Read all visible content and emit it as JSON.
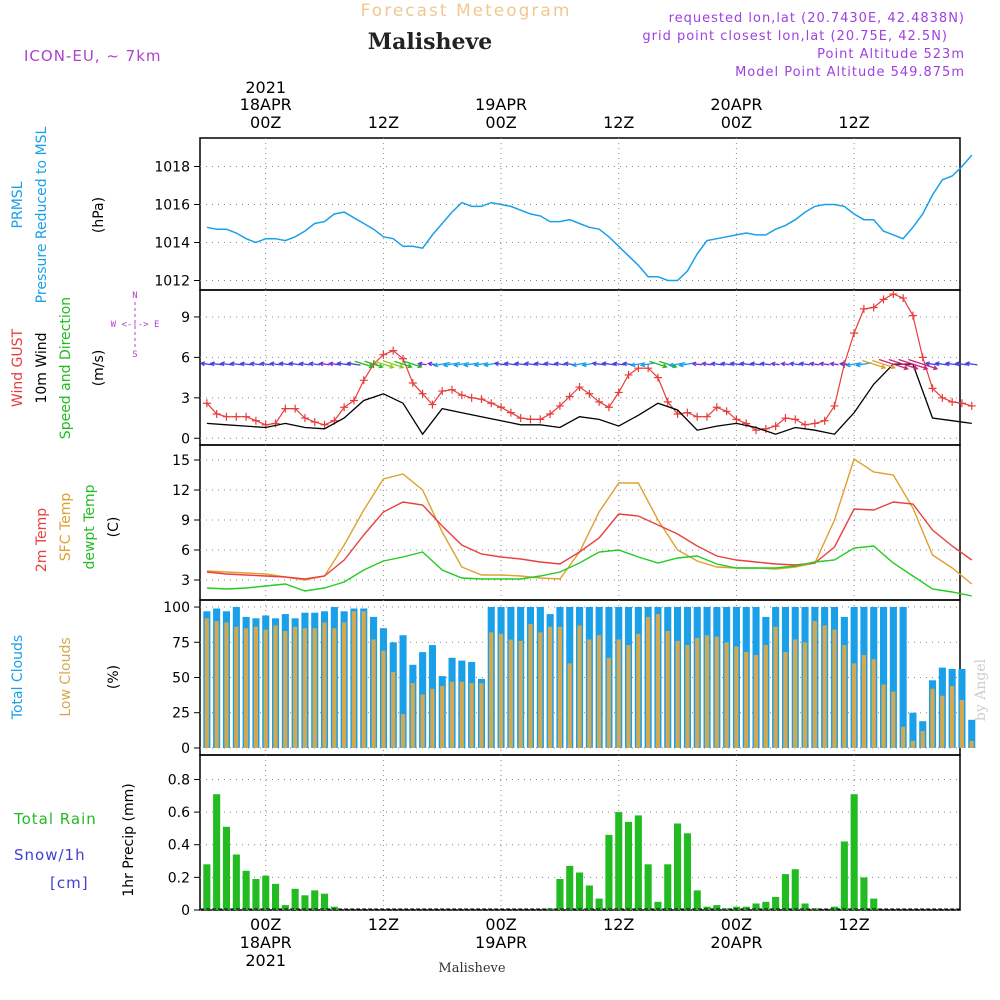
{
  "header": {
    "suptitle": "Forecast Meteogram",
    "title": "Malisheve",
    "model": "ICON-EU, ~ 7km",
    "requested": "requested lon,lat (20.7430E, 42.4838N)",
    "gridpoint": "grid point closest lon,lat (20.75E, 42.5N)",
    "point_alt": "Point Altitude 523m",
    "model_alt": "Model Point Altitude 549.875m",
    "watermark": "by Angel",
    "footer": "Malisheve",
    "compass": "W <-|-> E",
    "compass_n": "N",
    "compass_s": "S"
  },
  "colors": {
    "pressure": "#1aa0e8",
    "gust": "#e83c3c",
    "wind": "#000000",
    "dir": "#22bb22",
    "temp2m": "#e84040",
    "sfc": "#e0a030",
    "dewpt": "#22cc22",
    "total_clouds": "#1aa0e8",
    "low_clouds": "#d4a850",
    "rain": "#22bb22",
    "snow": "#4040d0",
    "compass": "#b040d0",
    "header_info": "#a040e0"
  },
  "chart_data": [
    {
      "name": "pressure",
      "type": "line",
      "x_unit": "hours from 18APR 00Z",
      "labels": {
        "a": "PRMSL",
        "b": "Pressure Reduced to MSL",
        "unit": "(hPa)"
      },
      "yticks": [
        1012,
        1014,
        1016,
        1018
      ],
      "ylim": [
        1011.5,
        1019.5
      ],
      "series": [
        {
          "x": [
            -6,
            -5,
            -4,
            -3,
            -2,
            -1,
            0,
            1,
            2,
            3,
            4,
            5,
            6,
            7,
            8,
            9,
            10,
            11,
            12,
            13,
            14,
            15,
            16,
            17,
            18,
            19,
            20,
            21,
            22,
            23,
            24,
            25,
            26,
            27,
            28,
            29,
            30,
            31,
            32,
            33,
            34,
            35,
            36,
            37,
            38,
            39,
            40,
            41,
            42,
            43,
            44,
            45,
            46,
            47,
            48,
            49,
            50,
            51,
            52,
            53,
            54,
            55,
            56,
            57,
            58,
            59,
            60,
            61,
            62,
            63,
            64,
            65,
            66,
            67,
            68,
            69,
            70,
            71,
            72
          ],
          "y": [
            1014.8,
            1014.7,
            1014.7,
            1014.5,
            1014.2,
            1014.0,
            1014.2,
            1014.2,
            1014.1,
            1014.3,
            1014.6,
            1015.0,
            1015.1,
            1015.5,
            1015.6,
            1015.3,
            1015.0,
            1014.7,
            1014.3,
            1014.2,
            1013.8,
            1013.8,
            1013.7,
            1014.4,
            1015.0,
            1015.6,
            1016.1,
            1015.9,
            1015.9,
            1016.1,
            1016.0,
            1015.9,
            1015.7,
            1015.5,
            1015.4,
            1015.1,
            1015.1,
            1015.2,
            1015.0,
            1014.8,
            1014.7,
            1014.3,
            1013.8,
            1013.3,
            1012.8,
            1012.2,
            1012.2,
            1012.0,
            1012.0,
            1012.5,
            1013.4,
            1014.1,
            1014.2,
            1014.3,
            1014.4,
            1014.5,
            1014.4,
            1014.4,
            1014.7,
            1014.9,
            1015.2,
            1015.6,
            1015.9,
            1016.0,
            1016.0,
            1015.9,
            1015.5,
            1015.2,
            1015.2,
            1014.6,
            1014.4,
            1014.2,
            1014.8,
            1015.5,
            1016.5,
            1017.3,
            1017.5,
            1018.0,
            1018.6
          ]
        }
      ]
    },
    {
      "name": "wind",
      "type": "line",
      "labels": {
        "a": "Wind GUST",
        "b": "10m Wind",
        "c": "Speed and Direction",
        "unit": "(m/s)"
      },
      "yticks": [
        0,
        3,
        6,
        9
      ],
      "ylim": [
        -0.5,
        11
      ],
      "series": [
        {
          "name": "Wind GUST",
          "x": [
            -6,
            -5,
            -4,
            -3,
            -2,
            -1,
            0,
            1,
            2,
            3,
            4,
            5,
            6,
            7,
            8,
            9,
            10,
            11,
            12,
            13,
            14,
            15,
            16,
            17,
            18,
            19,
            20,
            21,
            22,
            23,
            24,
            25,
            26,
            27,
            28,
            29,
            30,
            31,
            32,
            33,
            34,
            35,
            36,
            37,
            38,
            39,
            40,
            41,
            42,
            43,
            44,
            45,
            46,
            47,
            48,
            49,
            50,
            51,
            52,
            53,
            54,
            55,
            56,
            57,
            58,
            59,
            60,
            61,
            62,
            63,
            64,
            65,
            66,
            67,
            68,
            69,
            70,
            71,
            72
          ],
          "y": [
            2.6,
            1.8,
            1.6,
            1.6,
            1.6,
            1.3,
            1.0,
            1.1,
            2.2,
            2.2,
            1.5,
            1.2,
            1.0,
            1.3,
            2.3,
            2.8,
            4.3,
            5.5,
            6.2,
            6.5,
            5.9,
            4.1,
            3.3,
            2.5,
            3.5,
            3.6,
            3.2,
            3.0,
            2.9,
            2.6,
            2.3,
            1.9,
            1.5,
            1.4,
            1.4,
            1.8,
            2.4,
            3.1,
            3.8,
            3.3,
            2.7,
            2.3,
            3.4,
            4.7,
            5.2,
            5.2,
            4.5,
            2.7,
            1.8,
            1.9,
            1.6,
            1.6,
            2.3,
            2.0,
            1.4,
            1.1,
            0.6,
            0.7,
            0.9,
            1.5,
            1.4,
            1.0,
            1.1,
            1.3,
            2.4,
            5.5,
            7.8,
            9.6,
            9.7,
            10.3,
            10.7,
            10.4,
            9.1,
            6.0,
            3.7,
            3.0,
            2.7,
            2.6,
            2.4
          ]
        },
        {
          "name": "10m Wind",
          "x": [
            -6,
            -4,
            -2,
            0,
            2,
            4,
            6,
            8,
            10,
            12,
            14,
            16,
            18,
            20,
            22,
            24,
            26,
            28,
            30,
            32,
            34,
            36,
            38,
            40,
            42,
            44,
            46,
            48,
            50,
            52,
            54,
            56,
            58,
            60,
            62,
            64,
            66,
            68,
            70,
            72
          ],
          "y": [
            1.1,
            1.0,
            0.9,
            0.8,
            1.1,
            0.8,
            0.7,
            1.5,
            2.8,
            3.3,
            2.6,
            0.3,
            2.2,
            1.9,
            1.6,
            1.3,
            1.0,
            1.0,
            0.8,
            1.6,
            1.4,
            0.9,
            1.7,
            2.6,
            2.1,
            0.6,
            0.9,
            1.1,
            0.8,
            0.3,
            0.8,
            0.6,
            0.3,
            1.9,
            4.0,
            5.5,
            5.5,
            1.5,
            1.3,
            1.1
          ]
        }
      ],
      "arrows_y": 5.5
    },
    {
      "name": "temperature",
      "type": "line",
      "labels": {
        "a": "2m Temp",
        "b": "SFC Temp",
        "c": "dewpt Temp",
        "unit": "(C)"
      },
      "yticks": [
        3,
        6,
        9,
        12,
        15
      ],
      "ylim": [
        1,
        16.5
      ],
      "series": [
        {
          "name": "2m Temp",
          "x": [
            -6,
            -4,
            -2,
            0,
            2,
            4,
            6,
            8,
            10,
            12,
            14,
            16,
            18,
            20,
            22,
            24,
            26,
            28,
            30,
            32,
            34,
            36,
            38,
            40,
            42,
            44,
            46,
            48,
            50,
            52,
            54,
            56,
            58,
            60,
            62,
            64,
            66,
            68,
            70,
            72
          ],
          "y": [
            3.8,
            3.6,
            3.5,
            3.4,
            3.3,
            3.1,
            3.4,
            5.0,
            7.5,
            9.8,
            10.8,
            10.5,
            8.4,
            6.5,
            5.6,
            5.3,
            5.1,
            4.8,
            4.6,
            5.8,
            7.2,
            9.6,
            9.4,
            8.5,
            7.6,
            6.4,
            5.4,
            5.0,
            4.8,
            4.6,
            4.5,
            4.7,
            6.3,
            10.1,
            10.0,
            10.8,
            10.6,
            8.0,
            6.4,
            5.0
          ]
        },
        {
          "name": "SFC Temp",
          "x": [
            -6,
            -4,
            -2,
            0,
            2,
            4,
            6,
            8,
            10,
            12,
            14,
            16,
            18,
            20,
            22,
            24,
            26,
            28,
            30,
            32,
            34,
            36,
            38,
            40,
            42,
            44,
            46,
            48,
            50,
            52,
            54,
            56,
            58,
            60,
            62,
            64,
            66,
            68,
            70,
            72
          ],
          "y": [
            3.9,
            3.8,
            3.7,
            3.6,
            3.3,
            3.0,
            3.4,
            6.5,
            10.0,
            13.1,
            13.6,
            12.0,
            7.8,
            4.3,
            3.5,
            3.5,
            3.4,
            3.2,
            3.1,
            5.8,
            9.8,
            12.7,
            12.7,
            9.0,
            6.0,
            4.9,
            4.3,
            4.2,
            4.2,
            4.1,
            4.3,
            4.7,
            9.0,
            15.1,
            13.8,
            13.5,
            10.2,
            5.5,
            4.2,
            2.6
          ]
        },
        {
          "name": "dewpt Temp",
          "x": [
            -6,
            -4,
            -2,
            0,
            2,
            4,
            6,
            8,
            10,
            12,
            14,
            16,
            18,
            20,
            22,
            24,
            26,
            28,
            30,
            32,
            34,
            36,
            38,
            40,
            42,
            44,
            46,
            48,
            50,
            52,
            54,
            56,
            58,
            60,
            62,
            64,
            66,
            68,
            70,
            72
          ],
          "y": [
            2.2,
            2.1,
            2.2,
            2.4,
            2.6,
            1.9,
            2.2,
            2.8,
            4.0,
            4.9,
            5.3,
            5.8,
            4.0,
            3.2,
            3.1,
            3.1,
            3.1,
            3.4,
            3.8,
            4.7,
            5.8,
            6.0,
            5.3,
            4.7,
            5.2,
            5.4,
            4.6,
            4.2,
            4.2,
            4.2,
            4.4,
            4.8,
            5.0,
            6.2,
            6.4,
            4.7,
            3.4,
            2.1,
            1.8,
            1.4
          ]
        }
      ]
    },
    {
      "name": "clouds",
      "type": "bar",
      "labels": {
        "a": "Total Clouds",
        "b": "Low Clouds",
        "unit": "(%)"
      },
      "yticks": [
        0,
        25,
        50,
        75,
        100
      ],
      "ylim": [
        -5,
        105
      ],
      "x": [
        -6,
        -5,
        -4,
        -3,
        -2,
        -1,
        0,
        1,
        2,
        3,
        4,
        5,
        6,
        7,
        8,
        9,
        10,
        11,
        12,
        13,
        14,
        15,
        16,
        17,
        18,
        19,
        20,
        21,
        22,
        23,
        24,
        25,
        26,
        27,
        28,
        29,
        30,
        31,
        32,
        33,
        34,
        35,
        36,
        37,
        38,
        39,
        40,
        41,
        42,
        43,
        44,
        45,
        46,
        47,
        48,
        49,
        50,
        51,
        52,
        53,
        54,
        55,
        56,
        57,
        58,
        59,
        60,
        61,
        62,
        63,
        64,
        65,
        66,
        67,
        68,
        69,
        70,
        71,
        72
      ],
      "total": [
        97,
        99,
        97,
        100,
        93,
        92,
        94,
        92,
        95,
        92,
        96,
        96,
        97,
        100,
        97,
        99,
        99,
        93,
        85,
        75,
        80,
        59,
        68,
        73,
        51,
        64,
        62,
        61,
        49,
        100,
        100,
        100,
        100,
        100,
        100,
        95,
        100,
        100,
        100,
        100,
        100,
        100,
        100,
        100,
        100,
        100,
        100,
        100,
        100,
        100,
        100,
        100,
        100,
        100,
        100,
        100,
        100,
        93,
        100,
        100,
        100,
        100,
        100,
        100,
        100,
        93,
        100,
        100,
        100,
        100,
        100,
        100,
        25,
        19,
        48,
        57,
        56,
        56,
        20
      ],
      "low": [
        92,
        90,
        89,
        86,
        85,
        86,
        84,
        87,
        83,
        86,
        85,
        85,
        89,
        85,
        89,
        97,
        97,
        77,
        69,
        54,
        24,
        46,
        38,
        42,
        44,
        47,
        47,
        46,
        46,
        82,
        81,
        77,
        76,
        88,
        82,
        86,
        86,
        60,
        87,
        77,
        80,
        64,
        77,
        73,
        81,
        93,
        95,
        83,
        76,
        73,
        78,
        80,
        79,
        75,
        72,
        68,
        66,
        73,
        86,
        68,
        77,
        75,
        90,
        87,
        84,
        73,
        60,
        66,
        63,
        45,
        40,
        15,
        5,
        12,
        42,
        37,
        44,
        34,
        5
      ]
    },
    {
      "name": "precip",
      "type": "bar",
      "labels": {
        "a": "Total  Rain",
        "b": "Snow/1h",
        "c": "[cm]",
        "unit": "1hr Precip (mm)"
      },
      "yticks": [
        0,
        0.2,
        0.4,
        0.6,
        0.8
      ],
      "ylim": [
        0,
        0.95
      ],
      "x": [
        -6,
        -5,
        -4,
        -3,
        -2,
        -1,
        0,
        1,
        2,
        3,
        4,
        5,
        6,
        7,
        8,
        9,
        10,
        11,
        12,
        13,
        14,
        15,
        16,
        17,
        18,
        19,
        20,
        21,
        22,
        23,
        24,
        25,
        26,
        27,
        28,
        29,
        30,
        31,
        32,
        33,
        34,
        35,
        36,
        37,
        38,
        39,
        40,
        41,
        42,
        43,
        44,
        45,
        46,
        47,
        48,
        49,
        50,
        51,
        52,
        53,
        54,
        55,
        56,
        57,
        58,
        59,
        60,
        61,
        62,
        63,
        64,
        65,
        66,
        67,
        68,
        69,
        70,
        71,
        72
      ],
      "rain": [
        0.28,
        0.71,
        0.51,
        0.34,
        0.24,
        0.19,
        0.21,
        0.16,
        0.03,
        0.13,
        0.09,
        0.12,
        0.1,
        0.02,
        0,
        0,
        0,
        0,
        0,
        0,
        0,
        0,
        0,
        0,
        0,
        0,
        0,
        0,
        0,
        0,
        0,
        0,
        0,
        0,
        0,
        0.01,
        0.19,
        0.27,
        0.23,
        0.15,
        0.07,
        0.46,
        0.6,
        0.54,
        0.58,
        0.28,
        0.05,
        0.28,
        0.53,
        0.47,
        0.12,
        0.02,
        0.03,
        0.01,
        0.02,
        0.02,
        0.04,
        0.05,
        0.08,
        0.22,
        0.25,
        0.04,
        0.01,
        0,
        0.02,
        0.42,
        0.71,
        0.2,
        0.07,
        0,
        0,
        0,
        0,
        0,
        0,
        0,
        0,
        0,
        0
      ],
      "snow": []
    }
  ],
  "time_axis": {
    "top_labels": [
      {
        "x": 0,
        "l1": "2021",
        "l2": "18APR",
        "l3": "00Z"
      },
      {
        "x": 12,
        "l3": "12Z"
      },
      {
        "x": 24,
        "l2": "19APR",
        "l3": "00Z"
      },
      {
        "x": 36,
        "l3": "12Z"
      },
      {
        "x": 48,
        "l2": "20APR",
        "l3": "00Z"
      },
      {
        "x": 60,
        "l3": "12Z"
      }
    ],
    "bottom_labels": [
      {
        "x": 0,
        "l1": "00Z",
        "l2": "18APR",
        "l3": "2021"
      },
      {
        "x": 12,
        "l1": "12Z"
      },
      {
        "x": 24,
        "l1": "00Z",
        "l2": "19APR"
      },
      {
        "x": 36,
        "l1": "12Z"
      },
      {
        "x": 48,
        "l1": "00Z",
        "l2": "20APR"
      },
      {
        "x": 60,
        "l1": "12Z"
      }
    ],
    "xlim": [
      -6.7,
      70.8
    ]
  }
}
